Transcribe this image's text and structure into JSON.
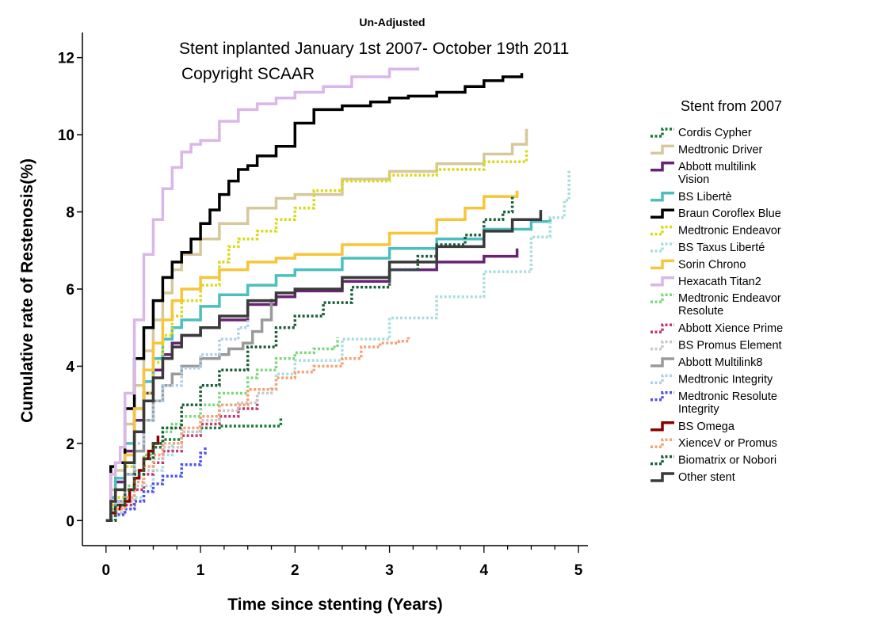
{
  "chart_data": {
    "type": "line",
    "title": "Un-Adjusted",
    "annotations": [
      "Stent inplanted January 1st 2007- October 19th 2011",
      "Copyright SCAAR"
    ],
    "xlabel": "Time since stenting (Years)",
    "ylabel": "Cumulative rate of Restenosis(%)",
    "xlim": [
      -0.25,
      5.1
    ],
    "ylim": [
      -0.65,
      12.65
    ],
    "xticks": [
      0,
      1,
      2,
      3,
      4,
      5
    ],
    "yticks": [
      0,
      2,
      4,
      6,
      8,
      10,
      12
    ],
    "xtick_labels": [
      "0",
      "1",
      "2",
      "3",
      "4",
      "5"
    ],
    "ytick_labels": [
      "0",
      "2",
      "4",
      "6",
      "8",
      "10",
      "12"
    ],
    "grid": false,
    "legend_title": "Stent from 2007",
    "legend_position": "right",
    "series": [
      {
        "name": "Cordis Cypher",
        "color": "#1a7a3c",
        "dash": "dotted",
        "x": [
          0,
          0.05,
          0.1,
          0.2,
          0.3,
          0.4,
          0.5,
          0.6,
          0.8,
          1.0,
          1.2,
          1.4,
          1.6,
          1.85,
          1.85
        ],
        "y": [
          0,
          0.2,
          0.4,
          0.8,
          1.2,
          1.6,
          1.9,
          2.1,
          2.3,
          2.4,
          2.45,
          2.45,
          2.45,
          2.5,
          2.7
        ]
      },
      {
        "name": "Medtronic Driver",
        "color": "#d6c89c",
        "dash": "solid",
        "x": [
          0,
          0.05,
          0.1,
          0.2,
          0.3,
          0.4,
          0.5,
          0.6,
          0.7,
          0.8,
          1.0,
          1.2,
          1.5,
          1.8,
          2.0,
          2.5,
          3.0,
          3.5,
          4.0,
          4.3,
          4.45,
          4.45
        ],
        "y": [
          0,
          0.8,
          1.3,
          2.5,
          3.5,
          4.4,
          5.2,
          5.9,
          6.5,
          6.9,
          7.3,
          7.7,
          8.1,
          8.35,
          8.45,
          8.85,
          9.05,
          9.25,
          9.5,
          9.75,
          9.95,
          10.15
        ]
      },
      {
        "name": "Abbott multilink Vision",
        "color": "#6a2277",
        "dash": "solid",
        "x": [
          0,
          0.05,
          0.1,
          0.2,
          0.3,
          0.4,
          0.5,
          0.6,
          0.7,
          0.8,
          1.0,
          1.2,
          1.5,
          1.8,
          2.0,
          2.5,
          3.0,
          3.5,
          4.0,
          4.35,
          4.35
        ],
        "y": [
          0,
          0.6,
          1.0,
          1.8,
          2.6,
          3.3,
          3.9,
          4.3,
          4.6,
          4.8,
          5.0,
          5.2,
          5.6,
          5.8,
          5.95,
          6.2,
          6.5,
          6.7,
          6.85,
          6.9,
          7.05
        ]
      },
      {
        "name": "BS Libertè",
        "color": "#4bbfbf",
        "dash": "solid",
        "x": [
          0,
          0.05,
          0.1,
          0.2,
          0.3,
          0.4,
          0.5,
          0.6,
          0.7,
          0.8,
          1.0,
          1.2,
          1.5,
          1.8,
          2.0,
          2.5,
          3.0,
          3.5,
          4.0,
          4.5,
          4.7
        ],
        "y": [
          0,
          0.6,
          1.1,
          2.0,
          2.9,
          3.6,
          4.2,
          4.7,
          5.0,
          5.2,
          5.55,
          5.85,
          6.1,
          6.35,
          6.5,
          6.8,
          7.05,
          7.3,
          7.55,
          7.75,
          7.85
        ]
      },
      {
        "name": "Braun Coroflex Blue",
        "color": "#000000",
        "dash": "solid",
        "x": [
          0,
          0.05,
          0.1,
          0.2,
          0.3,
          0.4,
          0.5,
          0.6,
          0.7,
          0.8,
          0.9,
          1.0,
          1.1,
          1.2,
          1.3,
          1.4,
          1.5,
          1.6,
          1.8,
          2.0,
          2.2,
          2.5,
          2.8,
          3.0,
          3.2,
          3.5,
          3.8,
          4.0,
          4.2,
          4.4
        ],
        "y": [
          0,
          1.4,
          1.5,
          2.9,
          4.2,
          5.0,
          5.7,
          6.3,
          6.7,
          6.95,
          7.3,
          7.7,
          8.05,
          8.45,
          8.8,
          9.1,
          9.2,
          9.45,
          9.7,
          10.3,
          10.65,
          10.75,
          10.85,
          10.95,
          11.0,
          11.1,
          11.25,
          11.4,
          11.5,
          11.6
        ]
      },
      {
        "name": "Medtronic Endeavor",
        "color": "#d9d91a",
        "dash": "dotted",
        "x": [
          0,
          0.05,
          0.1,
          0.2,
          0.3,
          0.4,
          0.5,
          0.6,
          0.7,
          0.8,
          1.0,
          1.2,
          1.3,
          1.4,
          1.6,
          1.8,
          2.0,
          2.2,
          2.5,
          3.0,
          3.5,
          4.0,
          4.45,
          4.45
        ],
        "y": [
          0,
          0.3,
          0.6,
          1.4,
          2.3,
          3.3,
          4.1,
          4.8,
          5.3,
          5.7,
          6.1,
          6.7,
          7.1,
          7.3,
          7.5,
          7.8,
          8.1,
          8.55,
          8.8,
          8.95,
          9.1,
          9.3,
          9.45,
          9.6
        ]
      },
      {
        "name": "BS Taxus Liberté",
        "color": "#a8dede",
        "dash": "dotted",
        "x": [
          0,
          0.05,
          0.1,
          0.2,
          0.3,
          0.4,
          0.5,
          0.6,
          0.7,
          0.8,
          1.0,
          1.2,
          1.5,
          1.8,
          2.0,
          2.5,
          3.0,
          3.5,
          4.0,
          4.5,
          4.7,
          4.85,
          4.9
        ],
        "y": [
          0,
          0.1,
          0.2,
          0.4,
          0.6,
          0.9,
          1.3,
          1.7,
          2.0,
          2.3,
          2.7,
          3.0,
          3.4,
          3.8,
          4.15,
          4.7,
          5.25,
          5.8,
          6.45,
          7.35,
          7.85,
          8.3,
          9.1
        ]
      },
      {
        "name": "Sorin Chrono",
        "color": "#f7c53a",
        "dash": "solid",
        "x": [
          0,
          0.05,
          0.1,
          0.2,
          0.3,
          0.4,
          0.5,
          0.6,
          0.7,
          0.8,
          1.0,
          1.2,
          1.5,
          1.8,
          2.0,
          2.5,
          3.0,
          3.5,
          3.8,
          4.0,
          4.35
        ],
        "y": [
          0,
          0.4,
          0.8,
          1.7,
          2.9,
          3.9,
          4.6,
          5.2,
          5.7,
          6.0,
          6.3,
          6.5,
          6.7,
          6.8,
          6.9,
          7.15,
          7.45,
          7.8,
          8.1,
          8.4,
          8.55
        ]
      },
      {
        "name": "Hexacath Titan2",
        "color": "#dbb6e8",
        "dash": "solid",
        "x": [
          0,
          0.05,
          0.1,
          0.15,
          0.2,
          0.3,
          0.4,
          0.5,
          0.6,
          0.7,
          0.8,
          0.9,
          1.0,
          1.2,
          1.4,
          1.6,
          1.8,
          2.0,
          2.3,
          2.6,
          3.0,
          3.3
        ],
        "y": [
          0,
          1.2,
          1.5,
          1.9,
          3.3,
          5.2,
          6.9,
          7.8,
          8.6,
          9.15,
          9.55,
          9.75,
          9.85,
          10.35,
          10.65,
          10.8,
          10.95,
          11.1,
          11.25,
          11.5,
          11.7,
          11.75
        ]
      },
      {
        "name": "Medtronic Endeavor Resolute",
        "color": "#7dd87d",
        "dash": "dotted",
        "x": [
          0,
          0.05,
          0.1,
          0.2,
          0.3,
          0.4,
          0.5,
          0.6,
          0.7,
          0.8,
          1.0,
          1.2,
          1.5,
          1.6,
          1.8,
          2.0,
          2.2,
          2.4,
          2.45,
          2.45
        ],
        "y": [
          0,
          0.3,
          0.5,
          0.9,
          1.3,
          1.7,
          2.0,
          2.3,
          2.5,
          2.7,
          3.0,
          3.3,
          3.7,
          3.9,
          4.2,
          4.35,
          4.45,
          4.5,
          4.55,
          4.75
        ]
      },
      {
        "name": "Abbott Xience Prime",
        "color": "#c2376f",
        "dash": "dotted",
        "x": [
          0,
          0.1,
          0.2,
          0.3,
          0.4,
          0.5,
          0.6,
          0.8,
          1.0,
          1.2,
          1.4,
          1.6
        ],
        "y": [
          0,
          0.2,
          0.4,
          0.8,
          1.2,
          1.5,
          1.8,
          2.2,
          2.5,
          2.7,
          2.9,
          3.2
        ]
      },
      {
        "name": "BS Promus Element",
        "color": "#c8c8c8",
        "dash": "dotted",
        "x": [
          0,
          0.1,
          0.2,
          0.3,
          0.4,
          0.5,
          0.6,
          0.8,
          1.0,
          1.2,
          1.4,
          1.6,
          1.75
        ],
        "y": [
          0,
          0.2,
          0.5,
          0.9,
          1.3,
          1.6,
          1.9,
          2.3,
          2.6,
          2.85,
          3.05,
          3.3,
          3.5
        ]
      },
      {
        "name": "Abbott Multilink8",
        "color": "#9a9a9a",
        "dash": "solid",
        "x": [
          0,
          0.05,
          0.1,
          0.2,
          0.3,
          0.4,
          0.5,
          0.6,
          0.7,
          0.8,
          1.0,
          1.2,
          1.3,
          1.45,
          1.55,
          1.65,
          1.75,
          1.75
        ],
        "y": [
          0,
          0.2,
          0.5,
          1.2,
          1.8,
          2.6,
          3.1,
          3.5,
          3.8,
          4.0,
          4.2,
          4.3,
          4.45,
          4.6,
          4.9,
          5.2,
          5.5,
          5.75
        ]
      },
      {
        "name": "Medtronic Integrity",
        "color": "#b0cfe8",
        "dash": "dotted",
        "x": [
          0,
          0.1,
          0.2,
          0.3,
          0.4,
          0.5,
          0.6,
          0.8,
          1.0,
          1.2,
          1.4,
          1.5
        ],
        "y": [
          0,
          0.5,
          1.2,
          2.0,
          2.6,
          3.1,
          3.5,
          3.95,
          4.3,
          4.7,
          5.0,
          5.3
        ]
      },
      {
        "name": "Medtronic Resolute Integrity",
        "color": "#4f55e8",
        "dash": "dotted",
        "x": [
          0,
          0.1,
          0.2,
          0.3,
          0.4,
          0.5,
          0.6,
          0.8,
          1.0,
          1.05
        ],
        "y": [
          0,
          0.15,
          0.3,
          0.5,
          0.75,
          0.95,
          1.15,
          1.45,
          1.75,
          1.9
        ]
      },
      {
        "name": "BS Omega",
        "color": "#8b0000",
        "dash": "solid",
        "x": [
          0,
          0.05,
          0.1,
          0.15,
          0.2,
          0.25,
          0.3,
          0.35,
          0.4,
          0.45,
          0.5,
          0.55
        ],
        "y": [
          0,
          0.2,
          0.3,
          0.4,
          0.5,
          0.8,
          1.1,
          1.3,
          1.6,
          1.8,
          2.0,
          2.2
        ]
      },
      {
        "name": "XienceV or Promus",
        "color": "#f5a274",
        "dash": "dotted",
        "x": [
          0,
          0.1,
          0.2,
          0.3,
          0.4,
          0.5,
          0.6,
          0.8,
          1.0,
          1.2,
          1.5,
          1.8,
          2.0,
          2.2,
          2.5,
          2.7,
          2.9,
          3.1,
          3.2
        ],
        "y": [
          0,
          0.3,
          0.6,
          1.0,
          1.4,
          1.7,
          2.0,
          2.4,
          2.7,
          3.0,
          3.4,
          3.7,
          3.85,
          4.0,
          4.2,
          4.5,
          4.6,
          4.65,
          4.75
        ]
      },
      {
        "name": "Biomatrix or Nobori",
        "color": "#1b5e3a",
        "dash": "dotted",
        "x": [
          0,
          0.1,
          0.2,
          0.3,
          0.4,
          0.5,
          0.6,
          0.8,
          1.0,
          1.2,
          1.5,
          1.8,
          2.0,
          2.3,
          2.6,
          3.0,
          3.3,
          3.5,
          3.8,
          4.0,
          4.2,
          4.3
        ],
        "y": [
          0,
          0.4,
          0.8,
          1.2,
          1.6,
          2.0,
          2.4,
          3.0,
          3.5,
          3.9,
          4.5,
          5.0,
          5.3,
          5.65,
          6.05,
          6.5,
          6.85,
          7.15,
          7.4,
          7.8,
          8.0,
          8.4
        ]
      },
      {
        "name": "Other stent",
        "color": "#3a3a3a",
        "dash": "solid",
        "x": [
          0,
          0.05,
          0.1,
          0.2,
          0.3,
          0.4,
          0.5,
          0.6,
          0.7,
          0.8,
          1.0,
          1.2,
          1.5,
          1.8,
          2.0,
          2.5,
          3.0,
          3.5,
          4.0,
          4.3,
          4.6,
          4.6
        ],
        "y": [
          0,
          0.5,
          0.8,
          1.5,
          2.3,
          3.1,
          3.7,
          4.2,
          4.5,
          4.8,
          5.0,
          5.3,
          5.7,
          5.9,
          6.0,
          6.3,
          6.7,
          7.1,
          7.5,
          7.8,
          7.85,
          8.05
        ]
      }
    ]
  }
}
